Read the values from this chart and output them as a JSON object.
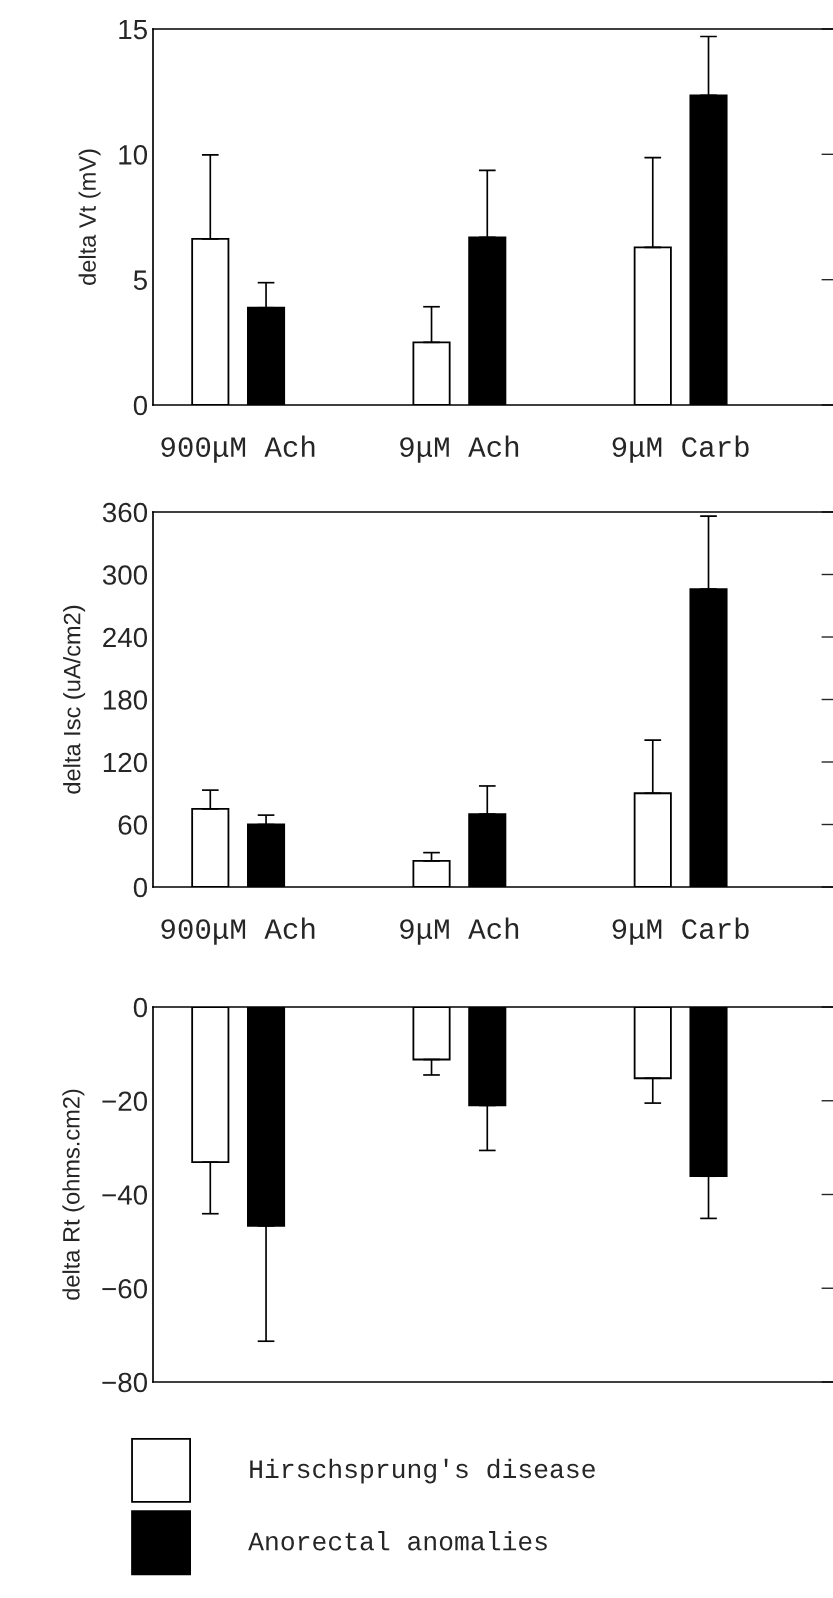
{
  "chart_data": [
    {
      "type": "bar",
      "ylabel": "delta Vt (mV)",
      "categories": [
        "900μM Ach",
        "9μM Ach",
        "9μM Carb"
      ],
      "ylim": [
        0,
        15
      ],
      "yticks": [
        0,
        5,
        10,
        15
      ],
      "grid": false,
      "series": [
        {
          "color": "#ffffff",
          "values": [
            6.63,
            2.5,
            6.29
          ],
          "errors": [
            [
              6.63,
              9.98
            ],
            [
              2.5,
              3.92
            ],
            [
              6.29,
              9.87
            ]
          ]
        },
        {
          "color": "#000000",
          "values": [
            3.88,
            6.69,
            12.35
          ],
          "errors": [
            [
              3.88,
              4.88
            ],
            [
              6.69,
              9.36
            ],
            [
              12.35,
              14.7
            ]
          ]
        }
      ]
    },
    {
      "type": "bar",
      "ylabel": "delta Isc (uA/cm2)",
      "categories": [
        "900μM Ach",
        "9μM Ach",
        "9μM Carb"
      ],
      "ylim": [
        0,
        360
      ],
      "yticks": [
        0,
        60,
        120,
        180,
        240,
        300,
        360
      ],
      "grid": false,
      "series": [
        {
          "color": "#ffffff",
          "values": [
            75,
            25,
            90
          ],
          "errors": [
            [
              75,
              93
            ],
            [
              25,
              33
            ],
            [
              90,
              141
            ]
          ]
        },
        {
          "color": "#000000",
          "values": [
            60,
            70,
            286
          ],
          "errors": [
            [
              60,
              69
            ],
            [
              70,
              97
            ],
            [
              286,
              356
            ]
          ]
        }
      ]
    },
    {
      "type": "bar",
      "ylabel": "delta Rt (ohms.cm2)",
      "categories": [
        null,
        null,
        null
      ],
      "ylim": [
        -80,
        0
      ],
      "yticks": [
        {
          "value": -80,
          "label": "−80"
        },
        {
          "value": -60,
          "label": "−60"
        },
        {
          "value": -40,
          "label": "−40"
        },
        {
          "value": -20,
          "label": "−20"
        },
        0
      ],
      "grid": false,
      "legend": "bottom",
      "tick_labels": "y",
      "series": [
        {
          "name": "Hirschsprung's disease",
          "color": "#ffffff",
          "values": [
            -33.1,
            -11.2,
            -15.2
          ],
          "errors": [
            [
              -44.1,
              -33.1
            ],
            [
              -14.5,
              -11.2
            ],
            [
              -20.5,
              -15.2
            ]
          ]
        },
        {
          "name": "Anorectal anomalies",
          "color": "#000000",
          "values": [
            -46.7,
            -21.0,
            -36.1
          ],
          "errors": [
            [
              -71.3,
              -46.7
            ],
            [
              -30.6,
              -21.0
            ],
            [
              -45.1,
              -36.1
            ]
          ]
        }
      ]
    }
  ]
}
